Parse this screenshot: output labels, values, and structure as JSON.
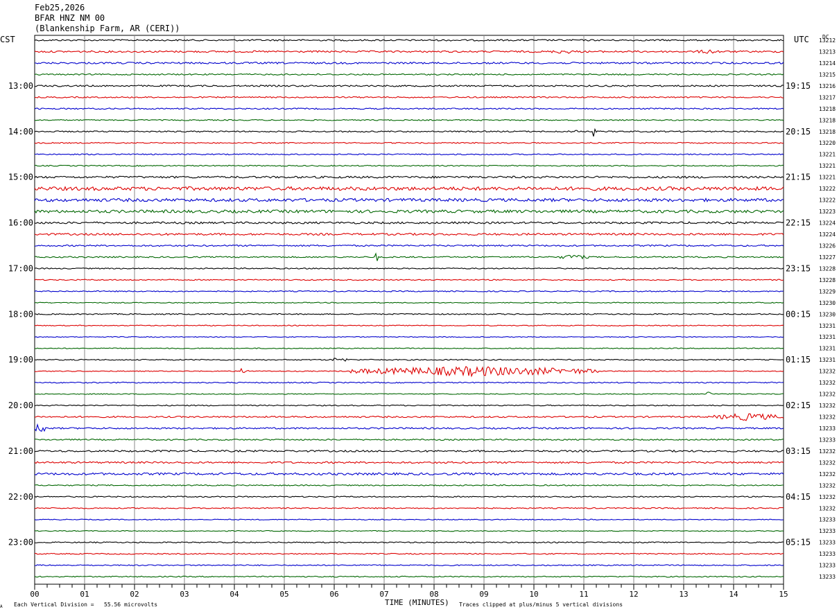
{
  "header": {
    "date": "Feb25,2026",
    "station": "BFAR HNZ NM 00",
    "site": "(Blankenship Farm, AR (CERI))"
  },
  "labels": {
    "left_tz": "CST",
    "right_tz": "UTC",
    "dc_header": "DC",
    "x_axis": "TIME (MINUTES)",
    "scale_note": "Each Vertical Division =   55.56 microvolts",
    "clip_note": "Traces clipped at plus/minus 5 vertical divisions",
    "corner_mark": "A"
  },
  "colors": {
    "black": "#000000",
    "red": "#dd0000",
    "blue": "#0000cc",
    "green": "#006600",
    "grid": "#888888"
  },
  "chart_data": {
    "type": "line",
    "title": "",
    "xlabel": "TIME (MINUTES)",
    "xlim": [
      0,
      15
    ],
    "x_ticks": [
      "00",
      "01",
      "02",
      "03",
      "04",
      "05",
      "06",
      "07",
      "08",
      "09",
      "10",
      "11",
      "12",
      "13",
      "14",
      "15"
    ],
    "trace_count": 48,
    "trace_interval_minutes": 15,
    "trace_color_cycle": [
      "black",
      "red",
      "blue",
      "green"
    ],
    "left_hour_labels": [
      "13:00",
      "14:00",
      "15:00",
      "16:00",
      "17:00",
      "18:00",
      "19:00",
      "20:00",
      "21:00",
      "22:00",
      "23:00"
    ],
    "right_hour_labels": [
      "19:15",
      "20:15",
      "21:15",
      "22:15",
      "23:15",
      "00:15",
      "01:15",
      "02:15",
      "03:15",
      "04:15",
      "05:15"
    ],
    "dc_offsets": [
      "13212",
      "13213",
      "13214",
      "13215",
      "13216",
      "13217",
      "13218",
      "13218",
      "13218",
      "13220",
      "13221",
      "13221",
      "13221",
      "13222",
      "13222",
      "13223",
      "13224",
      "13224",
      "13226",
      "13227",
      "13228",
      "13228",
      "13229",
      "13230",
      "13230",
      "13231",
      "13231",
      "13231",
      "13231",
      "13232",
      "13232",
      "13232",
      "13232",
      "13232",
      "13233",
      "13233",
      "13232",
      "13232",
      "13232",
      "13232",
      "13232",
      "13232",
      "13233",
      "13233",
      "13233",
      "13233",
      "13233",
      "13233"
    ],
    "noise_level": [
      0.7,
      0.8,
      0.8,
      0.6,
      0.7,
      0.6,
      0.6,
      0.5,
      0.6,
      0.5,
      0.5,
      0.5,
      0.9,
      1.6,
      1.4,
      1.3,
      0.9,
      0.9,
      0.7,
      0.6,
      0.5,
      0.5,
      0.5,
      0.4,
      0.5,
      0.4,
      0.4,
      0.4,
      0.5,
      0.4,
      0.5,
      0.4,
      0.5,
      0.7,
      0.7,
      0.6,
      0.8,
      0.8,
      1.0,
      0.5,
      0.5,
      0.5,
      0.4,
      0.4,
      0.5,
      0.5,
      0.5,
      0.5
    ],
    "events": [
      {
        "trace": 1,
        "minute": 10.6,
        "amp": 2.0,
        "dur": 0.3
      },
      {
        "trace": 1,
        "minute": 13.5,
        "amp": 2.0,
        "dur": 0.3
      },
      {
        "trace": 8,
        "minute": 10.85,
        "amp": 5.0,
        "dur": 0.03
      },
      {
        "trace": 8,
        "minute": 11.2,
        "amp": 5.0,
        "dur": 0.03
      },
      {
        "trace": 19,
        "minute": 6.85,
        "amp": 5.0,
        "dur": 0.03
      },
      {
        "trace": 19,
        "minute": 10.8,
        "amp": 2.5,
        "dur": 0.3
      },
      {
        "trace": 28,
        "minute": 6.0,
        "amp": 2.5,
        "dur": 0.05
      },
      {
        "trace": 28,
        "minute": 6.2,
        "amp": 3.0,
        "dur": 0.05
      },
      {
        "trace": 29,
        "minute": 4.2,
        "amp": 5.0,
        "dur": 0.08
      },
      {
        "trace": 29,
        "minute": 8.8,
        "amp": 4.5,
        "dur": 2.5
      },
      {
        "trace": 31,
        "minute": 13.5,
        "amp": 2.5,
        "dur": 0.1
      },
      {
        "trace": 33,
        "minute": 14.3,
        "amp": 3.5,
        "dur": 0.7
      },
      {
        "trace": 34,
        "minute": 0.1,
        "amp": 5.0,
        "dur": 0.15
      }
    ]
  }
}
